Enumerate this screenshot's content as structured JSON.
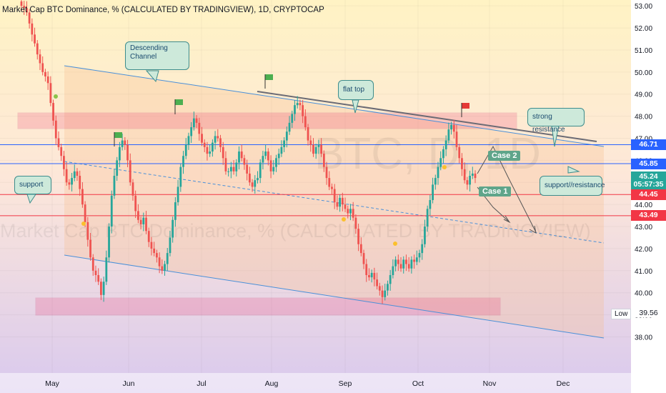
{
  "title": "Market Cap BTC Dominance, % (CALCULATED BY TRADINGVIEW), 1D, CRYPTOCAP",
  "watermark": {
    "big": "BTC, D, 1D",
    "line": "Market Cap BTC Dominance, % (CALCULATED BY TRADINGVIEW)"
  },
  "price_tags": [
    {
      "label": "46.71",
      "value": 46.71,
      "color": "#2962ff"
    },
    {
      "label": "45.85",
      "value": 45.85,
      "color": "#2962ff"
    },
    {
      "label": "45.24",
      "value": 45.24,
      "color": "#26a69a"
    },
    {
      "label": "05:57:35",
      "value": 44.88,
      "color": "#26a69a"
    },
    {
      "label": "44.45",
      "value": 44.45,
      "color": "#f23645"
    },
    {
      "label": "43.49",
      "value": 43.49,
      "color": "#f23645"
    }
  ],
  "callouts": {
    "descending_channel": "Descending\nChannel",
    "flat_top": "flat top",
    "strong_resistance": "strong resistance",
    "support_resistance": "support//resistance",
    "support": "support"
  },
  "cases": {
    "case1": "Case 1",
    "case2": "Case 2"
  },
  "low_label": "Low",
  "low_value": "39.56",
  "colors": {
    "up": "#26a69a",
    "down": "#ef5350",
    "channel_line": "#42a5f5",
    "zone": "#e91e63"
  },
  "chart_data": {
    "type": "candlestick",
    "title": "Market Cap BTC Dominance, % (CALCULATED BY TRADINGVIEW), 1D, CRYPTOCAP",
    "ylim": [
      37.4,
      53.2
    ],
    "y_ticks": [
      "53.00",
      "52.00",
      "51.00",
      "50.00",
      "49.00",
      "48.00",
      "47.00",
      "46.00",
      "45.00",
      "44.00",
      "43.00",
      "42.00",
      "41.00",
      "40.00",
      "39.00",
      "38.00"
    ],
    "x_ticks": [
      "May",
      "Jun",
      "Jul",
      "Aug",
      "Sep",
      "Oct",
      "Nov",
      "Dec"
    ],
    "closes": [
      53.0,
      52.9,
      52.7,
      52.2,
      51.7,
      51.3,
      50.8,
      50.4,
      50.0,
      49.8,
      49.5,
      48.6,
      47.8,
      47.0,
      46.6,
      46.2,
      45.6,
      45.0,
      44.9,
      45.2,
      45.5,
      45.3,
      44.7,
      44.0,
      43.2,
      42.4,
      41.6,
      41.0,
      40.8,
      40.5,
      39.9,
      40.5,
      41.6,
      43.0,
      44.4,
      45.3,
      46.0,
      46.6,
      46.9,
      46.7,
      46.0,
      45.0,
      44.4,
      43.7,
      43.3,
      43.1,
      43.4,
      42.8,
      42.3,
      42.0,
      41.8,
      41.6,
      41.2,
      41.0,
      41.3,
      41.8,
      42.5,
      43.3,
      44.1,
      44.8,
      45.7,
      46.2,
      46.7,
      47.1,
      47.5,
      47.9,
      47.7,
      47.2,
      46.8,
      46.6,
      46.3,
      46.4,
      46.8,
      47.1,
      47.0,
      46.6,
      46.1,
      45.5,
      45.5,
      45.7,
      45.5,
      45.9,
      46.4,
      46.1,
      45.8,
      45.4,
      45.0,
      44.8,
      45.1,
      45.2,
      45.9,
      46.2,
      46.4,
      46.0,
      45.5,
      45.7,
      46.1,
      46.3,
      46.6,
      46.9,
      47.3,
      47.7,
      48.1,
      48.5,
      48.6,
      48.5,
      48.0,
      47.5,
      46.9,
      46.7,
      46.3,
      46.6,
      46.7,
      46.3,
      45.7,
      45.2,
      44.8,
      44.7,
      44.1,
      43.9,
      44.3,
      44.0,
      43.8,
      43.6,
      43.8,
      43.4,
      42.9,
      42.2,
      41.8,
      41.3,
      40.8,
      40.7,
      40.9,
      40.6,
      40.3,
      40.1,
      39.8,
      40.1,
      40.4,
      40.8,
      41.2,
      41.5,
      41.3,
      41.1,
      41.5,
      41.3,
      41.1,
      41.5,
      41.4,
      41.6,
      41.8,
      42.2,
      43.0,
      43.8,
      44.2,
      44.9,
      45.2,
      45.7,
      46.1,
      46.5,
      46.9,
      47.4,
      47.6,
      47.3,
      46.6,
      46.1,
      45.6,
      45.1,
      44.9,
      45.3,
      45.4,
      45.2
    ],
    "annotations": [
      "Descending Channel",
      "flat top",
      "strong resistance",
      "support//resistance",
      "support",
      "Case 1",
      "Case 2"
    ],
    "horizontal_levels": [
      46.71,
      45.85,
      44.45,
      43.49
    ],
    "low": 39.56
  }
}
